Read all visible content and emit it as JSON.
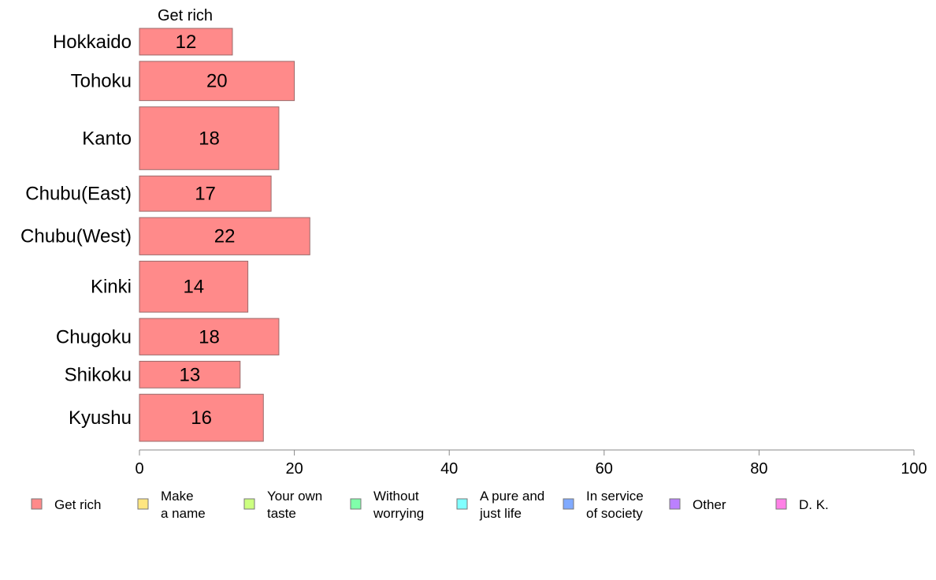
{
  "chart_data": {
    "type": "bar",
    "orientation": "horizontal",
    "series_title": "Get rich",
    "categories": [
      "Hokkaido",
      "Tohoku",
      "Kanto",
      "Chubu(East)",
      "Chubu(West)",
      "Kinki",
      "Chugoku",
      "Shikoku",
      "Kyushu"
    ],
    "relative_bar_widths": [
      0.68,
      1.0,
      1.6,
      0.9,
      0.95,
      1.3,
      0.93,
      0.68,
      1.2
    ],
    "series": [
      {
        "name": "Get rich",
        "color": "#ff8a8a",
        "values": [
          12,
          20,
          18,
          17,
          22,
          14,
          18,
          13,
          16
        ],
        "value_labels": [
          "12",
          "20",
          "18",
          "17",
          "22",
          "14",
          "18",
          "13",
          "16"
        ]
      }
    ],
    "xlim": [
      0,
      100
    ],
    "xticks": [
      "0",
      "20",
      "40",
      "60",
      "80",
      "100"
    ],
    "grid": false,
    "legend_position": "bottom",
    "legend": [
      {
        "label": "Get rich",
        "color": "#ff8a8a"
      },
      {
        "label": "Make\na name",
        "color": "#ffe680"
      },
      {
        "label": "Your own\ntaste",
        "color": "#ccff80"
      },
      {
        "label": "Without\nworrying",
        "color": "#80ffaa"
      },
      {
        "label": "A pure and\njust life",
        "color": "#80ffff"
      },
      {
        "label": "In service\nof society",
        "color": "#80aaff"
      },
      {
        "label": "Other",
        "color": "#bb80ff"
      },
      {
        "label": "D. K.",
        "color": "#ff80e6"
      }
    ]
  }
}
